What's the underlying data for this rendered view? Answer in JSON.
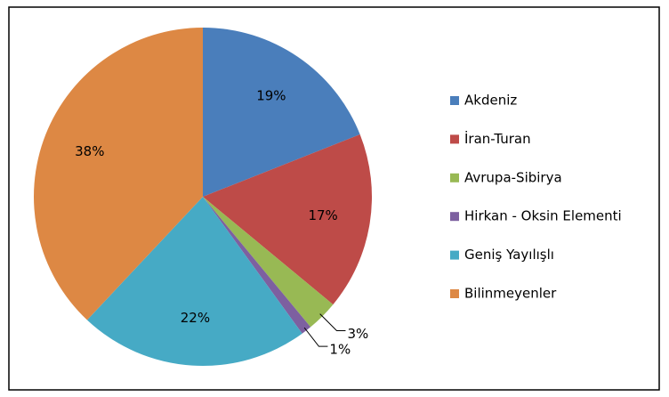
{
  "chart_data": {
    "type": "pie",
    "categories": [
      "Akdeniz",
      "İran-Turan",
      "Avrupa-Sibirya",
      "Hirkan - Oksin Elementi",
      "Geniş Yayılışlı",
      "Bilinmeyenler"
    ],
    "values": [
      19,
      17,
      3,
      1,
      22,
      38
    ],
    "value_labels": [
      "19%",
      "17%",
      "3%",
      "1%",
      "22%",
      "38%"
    ],
    "colors": [
      "#4a7ebb",
      "#be4b48",
      "#98b954",
      "#7d60a0",
      "#46aac5",
      "#dd8844"
    ],
    "legend": "right"
  }
}
